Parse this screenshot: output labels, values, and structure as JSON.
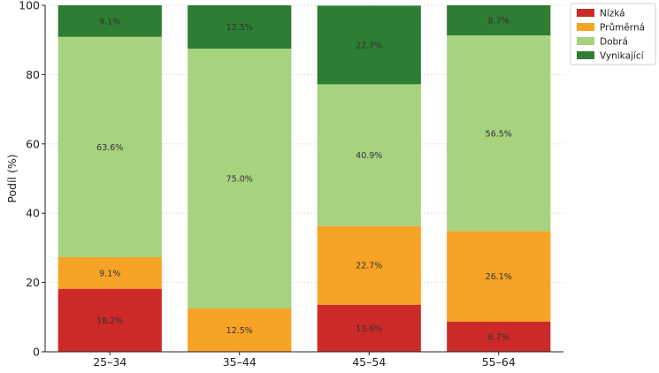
{
  "chart_data": {
    "type": "bar",
    "stacked": true,
    "categories": [
      "25–34",
      "35–44",
      "45–54",
      "55–64"
    ],
    "series": [
      {
        "name": "Nízká",
        "color": "#cc2a28",
        "values": [
          18.2,
          0,
          13.6,
          8.7
        ],
        "labels": [
          "18.2%",
          "",
          "13.6%",
          "8.7%"
        ]
      },
      {
        "name": "Průměrná",
        "color": "#f7a325",
        "values": [
          9.1,
          12.5,
          22.7,
          26.1
        ],
        "labels": [
          "9.1%",
          "12.5%",
          "22.7%",
          "26.1%"
        ]
      },
      {
        "name": "Dobrá",
        "color": "#a7d280",
        "values": [
          63.6,
          75.0,
          40.9,
          56.5
        ],
        "labels": [
          "63.6%",
          "75.0%",
          "40.9%",
          "56.5%"
        ]
      },
      {
        "name": "Vynikající",
        "color": "#2d7d32",
        "values": [
          9.1,
          12.5,
          22.7,
          8.7
        ],
        "labels": [
          "9.1%",
          "12.5%",
          "22.7%",
          "8.7%"
        ]
      }
    ],
    "ylabel": "Podíl (%)",
    "ylim": [
      0,
      100
    ],
    "yticks": [
      0,
      20,
      40,
      60,
      80,
      100
    ],
    "grid": true,
    "legend_position": "top-right"
  }
}
